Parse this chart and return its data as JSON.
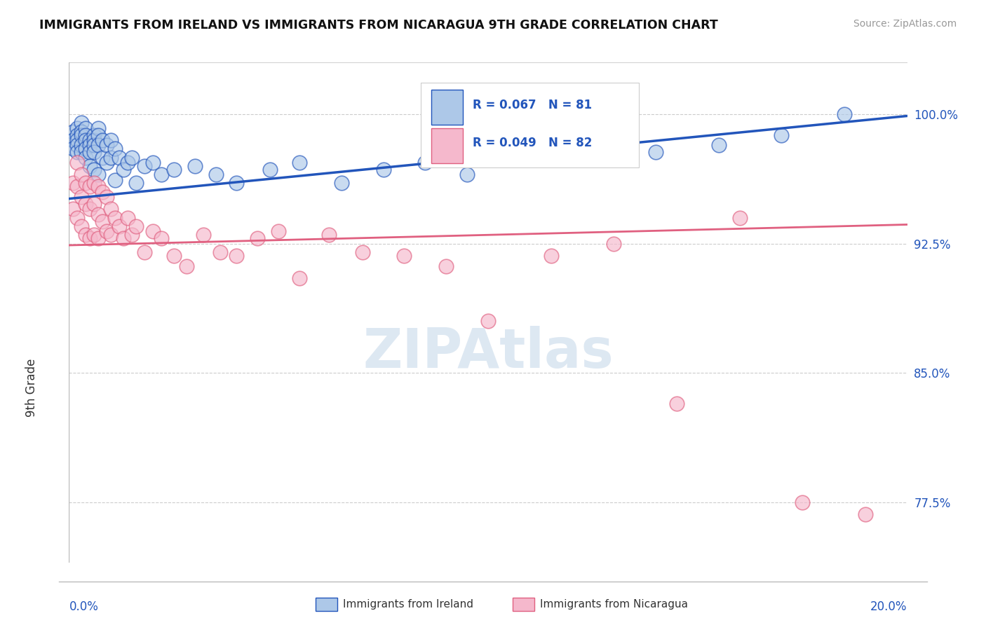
{
  "title": "IMMIGRANTS FROM IRELAND VS IMMIGRANTS FROM NICARAGUA 9TH GRADE CORRELATION CHART",
  "source": "Source: ZipAtlas.com",
  "ylabel": "9th Grade",
  "y_tick_labels": [
    "77.5%",
    "85.0%",
    "92.5%",
    "100.0%"
  ],
  "y_tick_values": [
    0.775,
    0.85,
    0.925,
    1.0
  ],
  "xlim": [
    0.0,
    0.2
  ],
  "ylim": [
    0.74,
    1.03
  ],
  "ireland_color": "#adc8e8",
  "nicaragua_color": "#f5b8cc",
  "ireland_line_color": "#2255bb",
  "nicaragua_line_color": "#e06080",
  "ireland_R": 0.067,
  "ireland_N": 81,
  "nicaragua_R": 0.049,
  "nicaragua_N": 82,
  "watermark": "ZIPAtlas",
  "legend_ireland": "Immigrants from Ireland",
  "legend_nicaragua": "Immigrants from Nicaragua",
  "ireland_trend_x": [
    0.0,
    0.2
  ],
  "ireland_trend_y": [
    0.951,
    0.999
  ],
  "nicaragua_trend_x": [
    0.0,
    0.2
  ],
  "nicaragua_trend_y": [
    0.924,
    0.936
  ],
  "ireland_scatter_x": [
    0.001,
    0.001,
    0.001,
    0.002,
    0.002,
    0.002,
    0.002,
    0.002,
    0.003,
    0.003,
    0.003,
    0.003,
    0.003,
    0.004,
    0.004,
    0.004,
    0.004,
    0.004,
    0.005,
    0.005,
    0.005,
    0.005,
    0.006,
    0.006,
    0.006,
    0.006,
    0.006,
    0.007,
    0.007,
    0.007,
    0.007,
    0.008,
    0.008,
    0.009,
    0.009,
    0.01,
    0.01,
    0.011,
    0.011,
    0.012,
    0.013,
    0.014,
    0.015,
    0.016,
    0.018,
    0.02,
    0.022,
    0.025,
    0.03,
    0.035,
    0.04,
    0.048,
    0.055,
    0.065,
    0.075,
    0.085,
    0.095,
    0.11,
    0.125,
    0.14,
    0.155,
    0.17,
    0.185
  ],
  "ireland_scatter_y": [
    0.99,
    0.985,
    0.98,
    0.992,
    0.988,
    0.985,
    0.982,
    0.978,
    0.995,
    0.99,
    0.988,
    0.982,
    0.978,
    0.992,
    0.988,
    0.985,
    0.98,
    0.975,
    0.985,
    0.982,
    0.978,
    0.97,
    0.988,
    0.985,
    0.982,
    0.978,
    0.968,
    0.992,
    0.988,
    0.982,
    0.965,
    0.985,
    0.975,
    0.982,
    0.972,
    0.985,
    0.975,
    0.98,
    0.962,
    0.975,
    0.968,
    0.972,
    0.975,
    0.96,
    0.97,
    0.972,
    0.965,
    0.968,
    0.97,
    0.965,
    0.96,
    0.968,
    0.972,
    0.96,
    0.968,
    0.972,
    0.965,
    0.98,
    0.975,
    0.978,
    0.982,
    0.988,
    1.0
  ],
  "nicaragua_scatter_x": [
    0.001,
    0.001,
    0.002,
    0.002,
    0.002,
    0.003,
    0.003,
    0.003,
    0.004,
    0.004,
    0.004,
    0.005,
    0.005,
    0.005,
    0.006,
    0.006,
    0.006,
    0.007,
    0.007,
    0.007,
    0.008,
    0.008,
    0.009,
    0.009,
    0.01,
    0.01,
    0.011,
    0.012,
    0.013,
    0.014,
    0.015,
    0.016,
    0.018,
    0.02,
    0.022,
    0.025,
    0.028,
    0.032,
    0.036,
    0.04,
    0.045,
    0.05,
    0.055,
    0.062,
    0.07,
    0.08,
    0.09,
    0.1,
    0.115,
    0.13,
    0.145,
    0.16,
    0.175,
    0.19
  ],
  "nicaragua_scatter_y": [
    0.96,
    0.945,
    0.972,
    0.958,
    0.94,
    0.965,
    0.952,
    0.935,
    0.96,
    0.948,
    0.93,
    0.958,
    0.945,
    0.928,
    0.96,
    0.948,
    0.93,
    0.958,
    0.942,
    0.928,
    0.955,
    0.938,
    0.952,
    0.932,
    0.945,
    0.93,
    0.94,
    0.935,
    0.928,
    0.94,
    0.93,
    0.935,
    0.92,
    0.932,
    0.928,
    0.918,
    0.912,
    0.93,
    0.92,
    0.918,
    0.928,
    0.932,
    0.905,
    0.93,
    0.92,
    0.918,
    0.912,
    0.88,
    0.918,
    0.925,
    0.832,
    0.94,
    0.775,
    0.768
  ]
}
